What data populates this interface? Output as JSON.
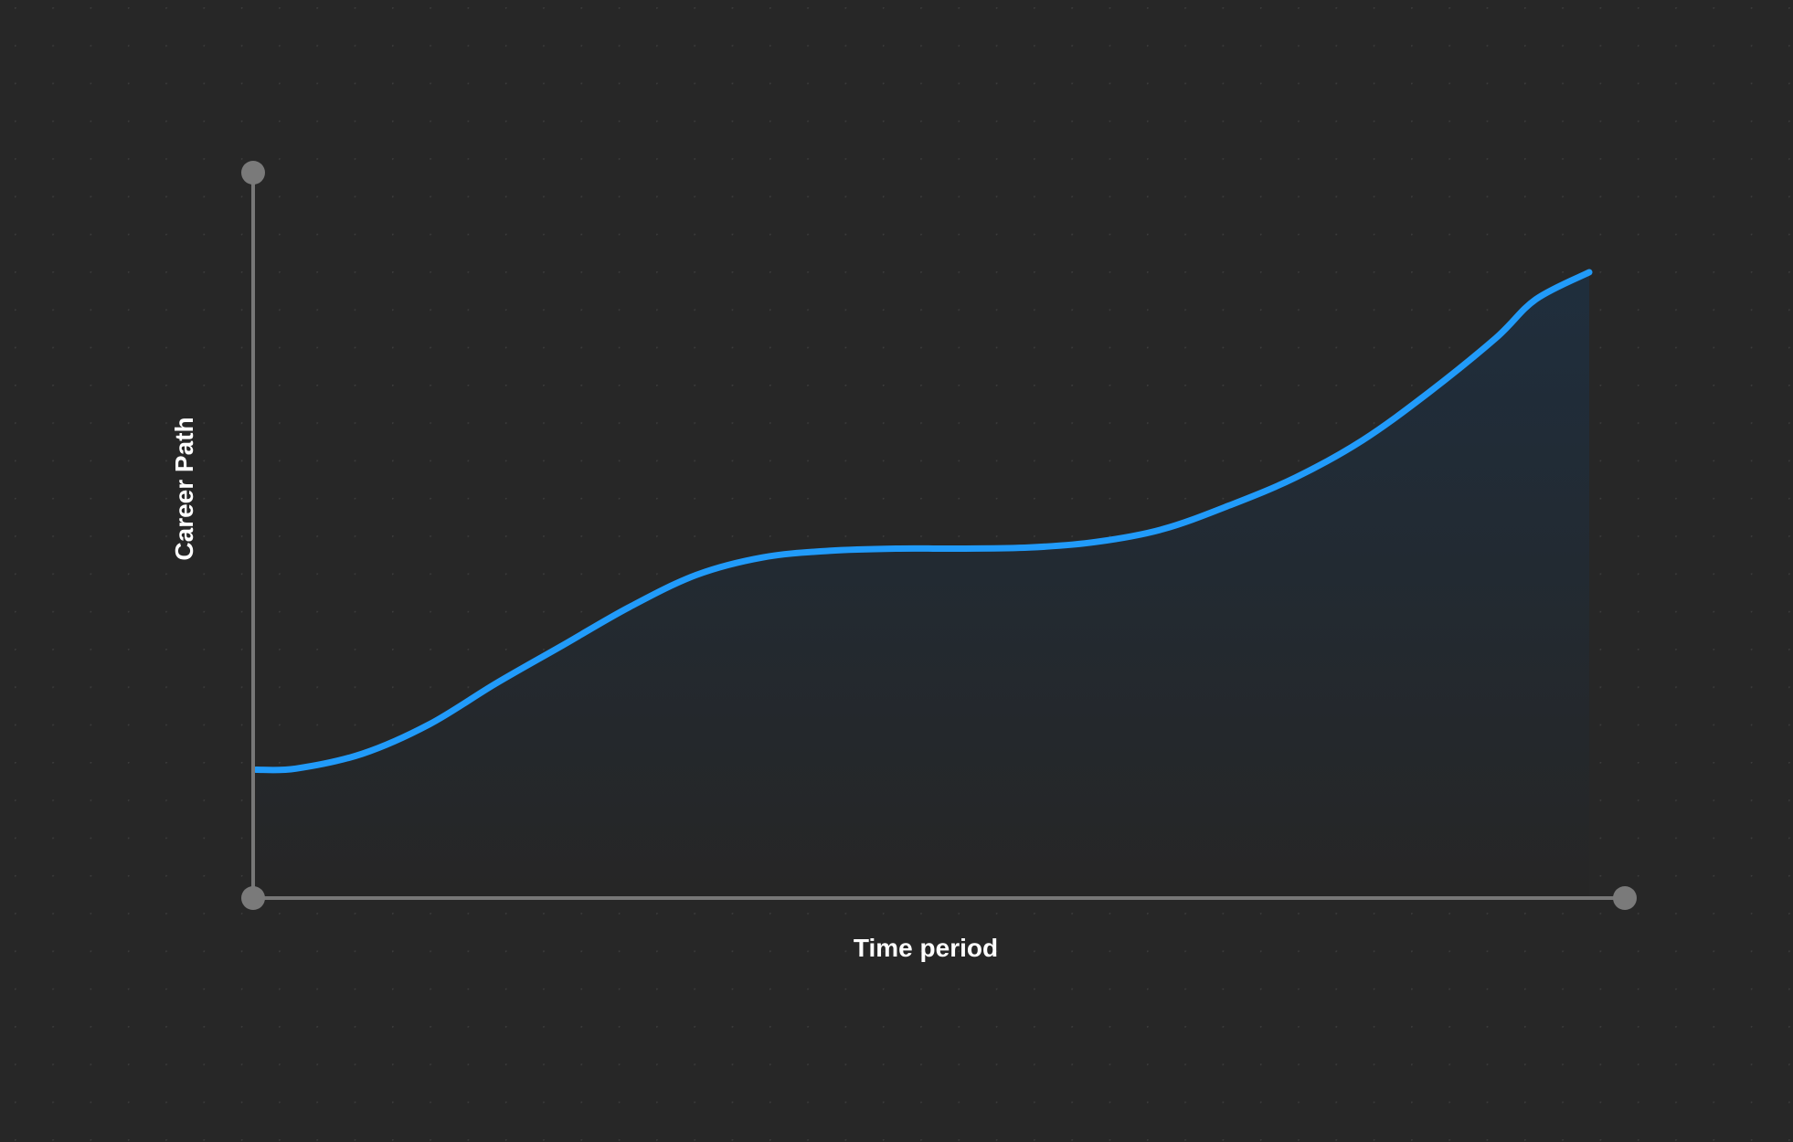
{
  "chart_data": {
    "type": "area",
    "title": "",
    "xlabel": "Time period",
    "ylabel": "Career Path",
    "xlim": [
      0,
      100
    ],
    "ylim": [
      0,
      100
    ],
    "grid": "dotted",
    "legend": "none",
    "series": [
      {
        "x": [
          0,
          3,
          8,
          13,
          18,
          23,
          28,
          33,
          38,
          43,
          48,
          53,
          58,
          63,
          68,
          73,
          78,
          83,
          88,
          93,
          96,
          100
        ],
        "values": [
          10,
          10.2,
          12.9,
          18.2,
          25.6,
          32.5,
          39.4,
          45.2,
          48.4,
          49.6,
          50,
          50,
          50.2,
          51.2,
          53.5,
          57.8,
          62.9,
          69.6,
          78.3,
          88.1,
          95.1,
          100
        ]
      }
    ]
  },
  "colors": {
    "background": "#272727",
    "grid_dot": "#3c3c3c",
    "axis": "#777777",
    "axis_cap": "#7a7a7a",
    "line": "#219bfa",
    "fill_top": "#1f2e3d",
    "fill_bottom": "#262626",
    "label": "#ffffff"
  }
}
